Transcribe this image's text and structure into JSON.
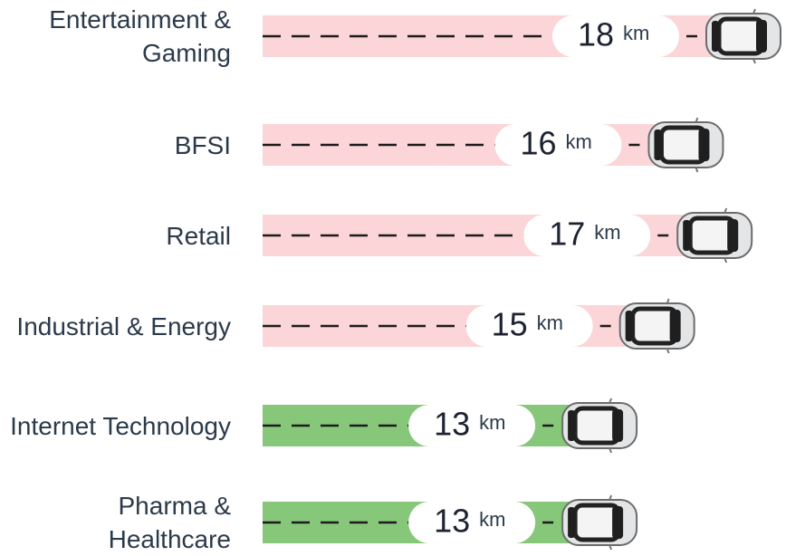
{
  "chart_data": {
    "type": "bar",
    "orientation": "horizontal",
    "categories": [
      "Entertainment & Gaming",
      "BFSI",
      "Retail",
      "Industrial & Energy",
      "Internet Technology",
      "Pharma & Healthcare"
    ],
    "values": [
      18,
      16,
      17,
      15,
      13,
      13
    ],
    "unit": "km",
    "colors": [
      "#fbd5d8",
      "#fbd5d8",
      "#fbd5d8",
      "#fbd5d8",
      "#86c77a",
      "#86c77a"
    ]
  }
}
